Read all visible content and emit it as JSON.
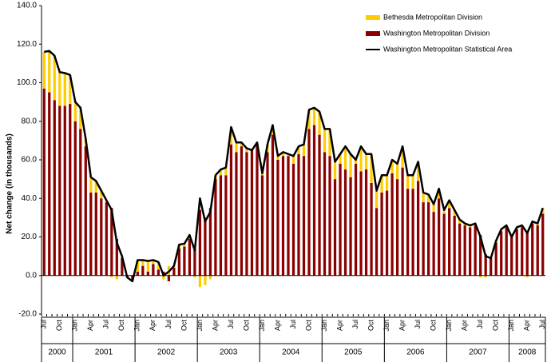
{
  "chart_data": {
    "type": "bar-line",
    "y_label": "Net change (in thousands)",
    "ylim": [
      -20,
      140
    ],
    "yticks": [
      {
        "value": -20,
        "label": "-20.0"
      },
      {
        "value": 0,
        "label": "0.0"
      },
      {
        "value": 20,
        "label": "20.0"
      },
      {
        "value": 40,
        "label": "40.0"
      },
      {
        "value": 60,
        "label": "60.0"
      },
      {
        "value": 80,
        "label": "80.0"
      },
      {
        "value": 100,
        "label": "100.0"
      },
      {
        "value": 120,
        "label": "120.0"
      },
      {
        "value": 140,
        "label": "140.0"
      }
    ],
    "categories": [
      "Jul",
      null,
      null,
      "Oct",
      null,
      null,
      "Jan",
      null,
      null,
      "Apr",
      null,
      null,
      "Jul",
      null,
      null,
      "Oct",
      null,
      null,
      "Jan",
      null,
      null,
      "Apr",
      null,
      null,
      "Jul",
      null,
      null,
      "Oct",
      null,
      null,
      "Jan",
      null,
      null,
      "Apr",
      null,
      null,
      "Jul",
      null,
      null,
      "Oct",
      null,
      null,
      "Jan",
      null,
      null,
      "Apr",
      null,
      null,
      "Jul",
      null,
      null,
      "Oct",
      null,
      null,
      "Jan",
      null,
      null,
      "Apr",
      null,
      null,
      "Jul",
      null,
      null,
      "Oct",
      null,
      null,
      "Jan",
      null,
      null,
      "Apr",
      null,
      null,
      "Jul",
      null,
      null,
      "Oct",
      null,
      null,
      "Jan",
      null,
      null,
      "Apr",
      null,
      null,
      "Jul",
      null,
      null,
      "Oct",
      null,
      null,
      "Jan",
      null,
      null,
      "Apr",
      null,
      null,
      "Jul"
    ],
    "groups": [
      "2000",
      "2001",
      "2002",
      "2003",
      "2004",
      "2005",
      "2006",
      "2007",
      "2008"
    ],
    "series": [
      {
        "name": "Bethesda Metropolitan Division",
        "color": "#ffcc00",
        "kind": "bar",
        "values": [
          19,
          21.5,
          23,
          17.5,
          17,
          15,
          10,
          11,
          4,
          8,
          6,
          4,
          1,
          -1,
          -2,
          1,
          0,
          -1,
          6,
          3,
          5.5,
          2,
          4,
          -2,
          5,
          1,
          2,
          1.5,
          2,
          -1,
          -6,
          -5,
          -2,
          2,
          3,
          4,
          9,
          5,
          2,
          2,
          0,
          1,
          1,
          4,
          5,
          2,
          2,
          1,
          4,
          4,
          6,
          10,
          9,
          12,
          12,
          14,
          9,
          5,
          12,
          12,
          2,
          13,
          8,
          15,
          9,
          9,
          8,
          7,
          8,
          11,
          7,
          7,
          10,
          5,
          4,
          4,
          5,
          2,
          4,
          3,
          2,
          1,
          1,
          1,
          -1,
          -1,
          0,
          1,
          1,
          1,
          0,
          1,
          1,
          -1,
          1,
          1,
          3
        ]
      },
      {
        "name": "Washington Metropolitan Division",
        "color": "#8b0000",
        "kind": "bar",
        "values": [
          97,
          95,
          91,
          88,
          88,
          89,
          80,
          76,
          67,
          43,
          43,
          40,
          38,
          35,
          19,
          9,
          -1,
          -2,
          2,
          5,
          2,
          6,
          3,
          2,
          -3,
          4,
          14,
          15,
          19,
          14,
          34,
          30,
          35,
          50,
          52,
          52,
          68,
          64,
          67,
          64,
          65,
          68,
          52,
          64,
          73,
          60,
          62,
          62,
          58,
          63,
          62,
          76,
          78,
          73,
          64,
          62,
          50,
          58,
          55,
          51,
          58,
          54,
          55,
          48,
          35,
          43,
          44,
          53,
          50,
          56,
          45,
          45,
          49,
          38,
          38,
          33,
          40,
          32,
          35,
          31,
          27,
          26,
          25,
          26,
          21,
          11,
          9,
          17,
          23,
          25,
          20,
          24,
          25,
          23,
          27,
          26,
          32
        ]
      },
      {
        "name": "Washington Metropolitan Statistical Area",
        "color": "#000000",
        "kind": "line",
        "values": [
          116,
          116.5,
          114,
          105.5,
          105,
          104,
          90,
          87,
          71,
          51,
          49,
          44,
          39,
          34,
          17,
          10,
          -1,
          -3,
          8,
          8,
          7.5,
          8,
          7,
          0,
          2,
          5,
          16,
          16.5,
          21,
          13,
          40,
          28,
          33,
          52,
          55,
          56,
          77,
          69,
          69,
          66,
          65,
          69,
          53,
          68,
          78,
          62,
          64,
          63,
          62,
          67,
          68,
          86,
          87,
          85,
          76,
          76,
          59,
          63,
          67,
          63,
          60,
          67,
          63,
          63,
          44,
          52,
          52,
          60,
          58,
          67,
          52,
          52,
          59,
          43,
          42,
          37,
          45,
          34,
          39,
          34,
          29,
          27,
          26,
          27,
          20,
          10,
          9,
          18,
          24,
          26,
          20,
          25,
          26,
          22,
          28,
          27,
          35
        ]
      }
    ]
  }
}
